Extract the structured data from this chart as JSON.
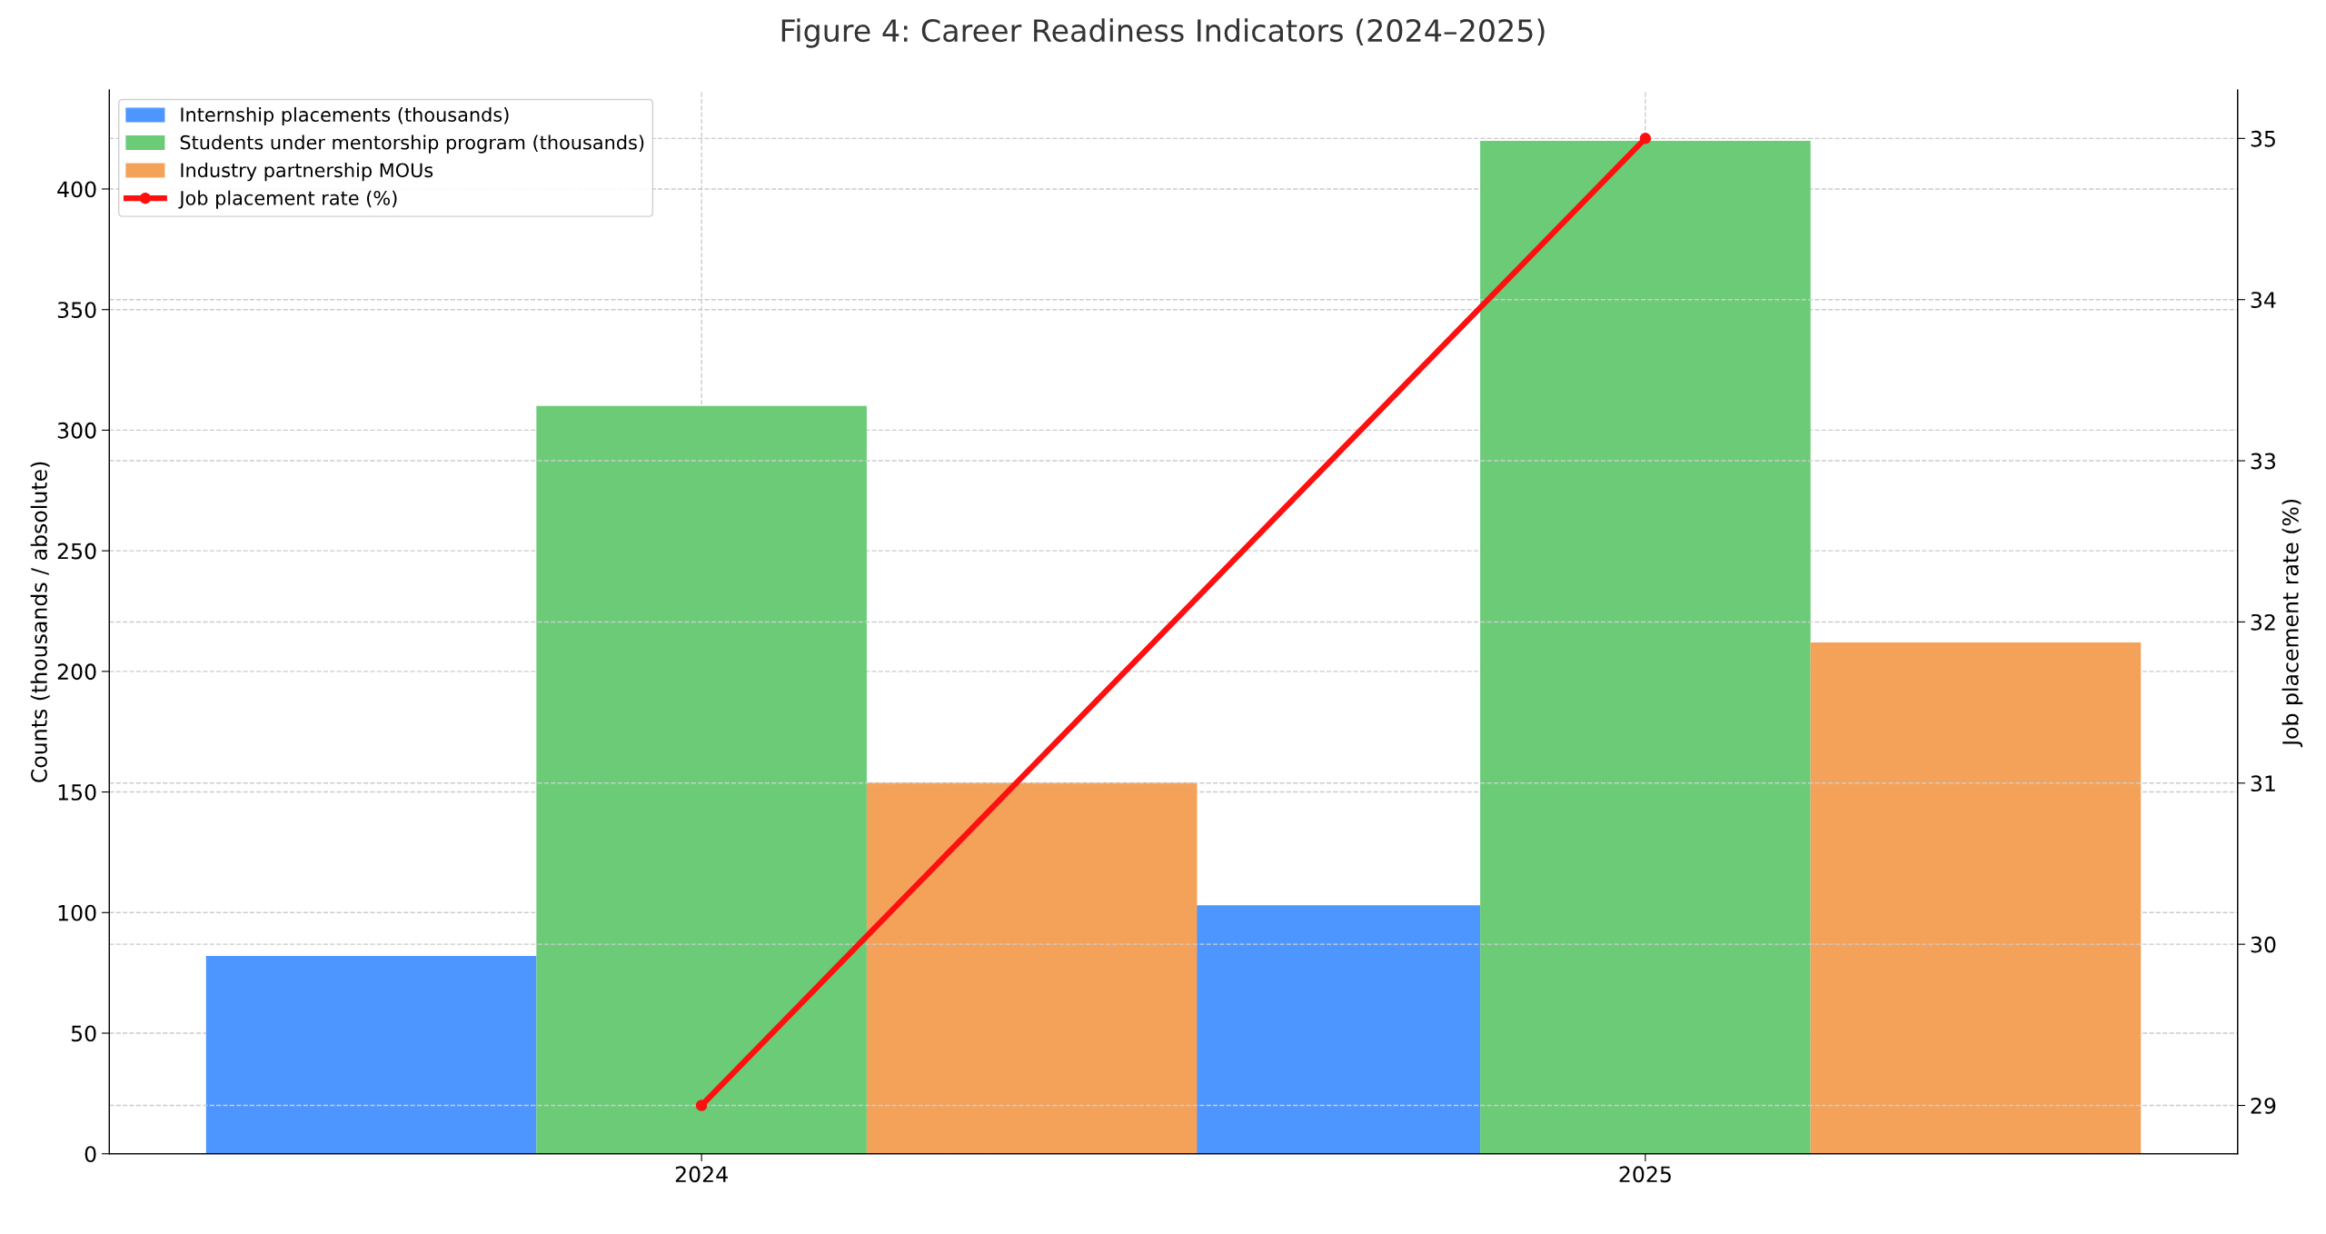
{
  "chart_data": {
    "type": "bar",
    "title": "Figure 4: Career Readiness Indicators (2024–2025)",
    "categories": [
      "2024",
      "2025"
    ],
    "series": [
      {
        "name": "Internship placements (thousands)",
        "color": "#4d96ff",
        "values": [
          82,
          103
        ]
      },
      {
        "name": "Students under mentorship program (thousands)",
        "color": "#6bcb77",
        "values": [
          310,
          420
        ]
      },
      {
        "name": "Industry partnership MOUs",
        "color": "#f4a259",
        "values": [
          154,
          212
        ]
      },
      {
        "name": "Job placement rate (%)",
        "type": "line",
        "axis": "y2",
        "color": "#ff1010",
        "values": [
          29,
          35
        ],
        "marker": "circle"
      }
    ],
    "ylabel": "Counts (thousands / absolute)",
    "y2label": "Job placement rate (%)",
    "ylim": [
      0,
      441
    ],
    "yticks": [
      0,
      50,
      100,
      150,
      200,
      250,
      300,
      350,
      400
    ],
    "y2lim": [
      28.7,
      35.3
    ],
    "y2ticks": [
      29,
      30,
      31,
      32,
      33,
      34,
      35
    ],
    "grid": true,
    "legend": "top left"
  }
}
